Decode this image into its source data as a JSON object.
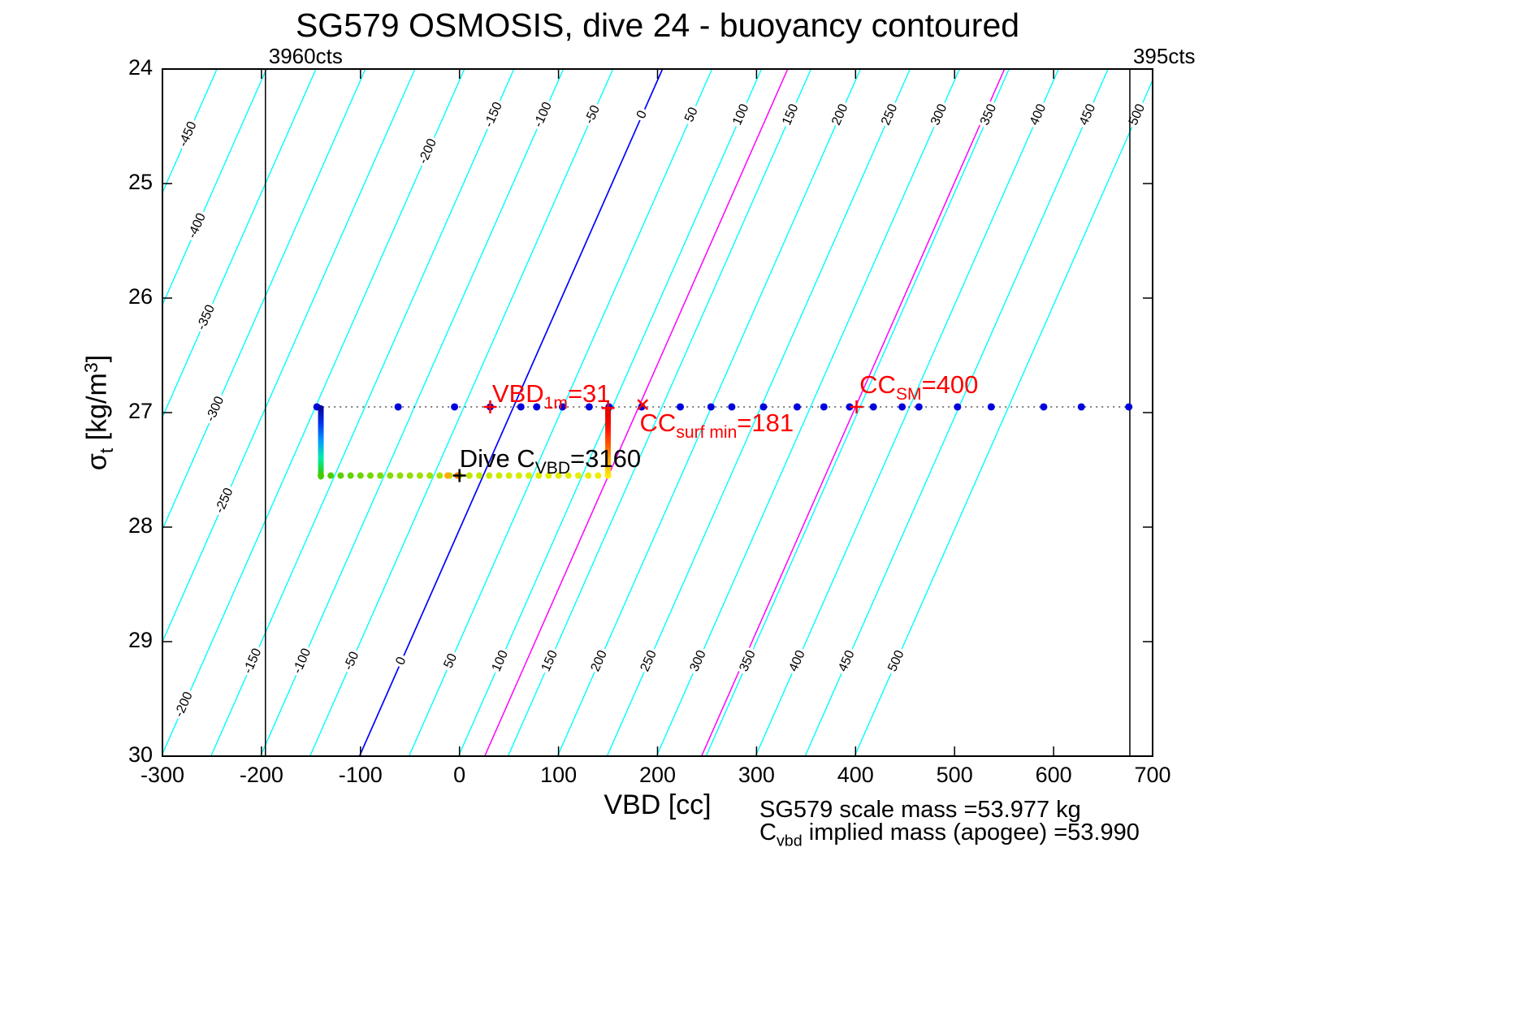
{
  "figure": {
    "title": "SG579 OSMOSIS, dive 24 - buoyancy contoured",
    "xlabel": "VBD [cc]",
    "ylabel_parts": [
      {
        "t": "σ"
      },
      {
        "t": "t",
        "sub": true
      },
      {
        "t": " [kg/m"
      },
      {
        "t": "3",
        "sup": true
      },
      {
        "t": "]"
      }
    ],
    "footer": {
      "line1": "SG579 scale mass =53.977 kg",
      "line2_parts": [
        {
          "t": "C"
        },
        {
          "t": "vbd",
          "sub": true
        },
        {
          "t": " implied mass (apogee) =53.990"
        }
      ]
    }
  },
  "chart_data": {
    "type": "scatter",
    "description": "Seaglider SG579 dive 24: VBD vs potential density with diagonal buoyancy contours (grams)",
    "x_range": [
      -300,
      700
    ],
    "y_range": [
      24,
      30
    ],
    "y_axis_direction": "reversed (24 at top, 30 at bottom)",
    "x_ticks": [
      -300,
      -200,
      -100,
      0,
      100,
      200,
      300,
      400,
      500,
      600,
      700
    ],
    "y_ticks": [
      24,
      25,
      26,
      27,
      28,
      29,
      30
    ],
    "contours": {
      "levels": [
        -450,
        -400,
        -350,
        -300,
        -250,
        -200,
        -150,
        -100,
        -50,
        0,
        50,
        100,
        150,
        200,
        250,
        300,
        350,
        400,
        450,
        500
      ],
      "level_step": 50,
      "line_color": "#00ffff",
      "zero_level_color": "#0000ff",
      "vbd_at_level0_sigma27": 52,
      "dvbd_per_sigma": -51,
      "dvbd_per_level": 1
    },
    "highlight_lines": [
      {
        "color": "#ff00ff",
        "through_x": 181,
        "through_sigma": 26.95
      },
      {
        "color": "#ff00ff",
        "through_x": 400,
        "through_sigma": 26.95
      }
    ],
    "reference_lines": [
      {
        "x": -196,
        "label": "3960cts"
      },
      {
        "x": 677,
        "label": "395cts"
      }
    ],
    "surface_series": {
      "sigma": 26.95,
      "color": "#0000dd",
      "connector_style": "dotted-black",
      "x": [
        -144,
        -62,
        -5,
        31,
        62,
        78,
        104,
        131,
        151,
        184,
        223,
        254,
        275,
        307,
        341,
        368,
        394,
        418,
        447,
        464,
        503,
        537,
        590,
        628,
        676
      ]
    },
    "dive_track": {
      "descent": {
        "x": -140,
        "sigma_from": 26.96,
        "sigma_to": 27.56,
        "colors": [
          "#000099",
          "#0033ee",
          "#0099ff",
          "#00eeaa",
          "#33cc00"
        ]
      },
      "bottom_leg": {
        "sigma": 27.55,
        "x_from": -140,
        "x_to": 150,
        "dot_step_cc": 10,
        "colors": [
          "#44cc00",
          "#88dd00",
          "#bbe600",
          "#ddee00",
          "#eeee00"
        ]
      },
      "ascent": {
        "x": 150,
        "sigma_from": 27.55,
        "sigma_to": 26.97,
        "colors": [
          "#ffee00",
          "#ffaa00",
          "#ff5500",
          "#ff1100",
          "#dd0000"
        ]
      },
      "extra_dots": [
        {
          "x": -2,
          "sigma": 27.55,
          "color": "#ff7700"
        },
        {
          "x": -12,
          "sigma": 27.55,
          "color": "#ffaa00"
        }
      ]
    },
    "markers": [
      {
        "shape": "plus",
        "x": 31,
        "sigma": 26.95,
        "color": "#ff0000"
      },
      {
        "shape": "plus",
        "x": 150,
        "sigma": 26.96,
        "color": "#ff0000"
      },
      {
        "shape": "x",
        "x": 185,
        "sigma": 26.93,
        "color": "#ff0000"
      },
      {
        "shape": "plus",
        "x": 401,
        "sigma": 26.95,
        "color": "#ff0000"
      },
      {
        "shape": "plus",
        "x": 0,
        "sigma": 27.55,
        "color": "#000000"
      }
    ],
    "annotations": [
      {
        "id": "vbd-1m",
        "color": "#ff0000",
        "x": 33,
        "sigma": 26.95,
        "dy": -34,
        "parts": [
          {
            "t": "VBD"
          },
          {
            "t": "1m",
            "sub": true
          },
          {
            "t": "=31"
          }
        ]
      },
      {
        "id": "cc-surf-min",
        "color": "#ff0000",
        "x": 182,
        "sigma": 26.95,
        "dy": 2,
        "parts": [
          {
            "t": "CC"
          },
          {
            "t": "surf min",
            "sub": true
          },
          {
            "t": "=181"
          }
        ]
      },
      {
        "id": "cc-sm",
        "color": "#ff0000",
        "x": 404,
        "sigma": 26.95,
        "dy": -45,
        "parts": [
          {
            "t": "CC"
          },
          {
            "t": "SM",
            "sub": true
          },
          {
            "t": "=400"
          }
        ]
      },
      {
        "id": "dive-c-vbd",
        "color": "#000000",
        "x": 0,
        "sigma": 27.55,
        "dy": -39,
        "parts": [
          {
            "t": "Dive C"
          },
          {
            "t": "VBD",
            "sub": true
          },
          {
            "t": "=3160"
          }
        ]
      }
    ]
  }
}
